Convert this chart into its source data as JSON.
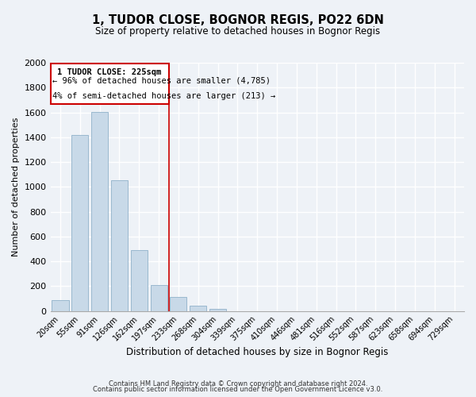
{
  "title": "1, TUDOR CLOSE, BOGNOR REGIS, PO22 6DN",
  "subtitle": "Size of property relative to detached houses in Bognor Regis",
  "xlabel": "Distribution of detached houses by size in Bognor Regis",
  "ylabel": "Number of detached properties",
  "bar_labels": [
    "20sqm",
    "55sqm",
    "91sqm",
    "126sqm",
    "162sqm",
    "197sqm",
    "233sqm",
    "268sqm",
    "304sqm",
    "339sqm",
    "375sqm",
    "410sqm",
    "446sqm",
    "481sqm",
    "516sqm",
    "552sqm",
    "587sqm",
    "623sqm",
    "658sqm",
    "694sqm",
    "729sqm"
  ],
  "bar_values": [
    85,
    1415,
    1605,
    1050,
    490,
    210,
    110,
    40,
    15,
    0,
    0,
    0,
    0,
    0,
    0,
    0,
    0,
    0,
    0,
    0,
    0
  ],
  "bar_color": "#c8d9e8",
  "bar_edge_color": "#9ab8cf",
  "marker_index": 6,
  "marker_color": "#cc0000",
  "ylim": [
    0,
    2000
  ],
  "yticks": [
    0,
    200,
    400,
    600,
    800,
    1000,
    1200,
    1400,
    1600,
    1800,
    2000
  ],
  "annotation_title": "1 TUDOR CLOSE: 225sqm",
  "annotation_line1": "← 96% of detached houses are smaller (4,785)",
  "annotation_line2": "4% of semi-detached houses are larger (213) →",
  "footer_line1": "Contains HM Land Registry data © Crown copyright and database right 2024.",
  "footer_line2": "Contains public sector information licensed under the Open Government Licence v3.0.",
  "background_color": "#eef2f7",
  "grid_color": "#ffffff"
}
